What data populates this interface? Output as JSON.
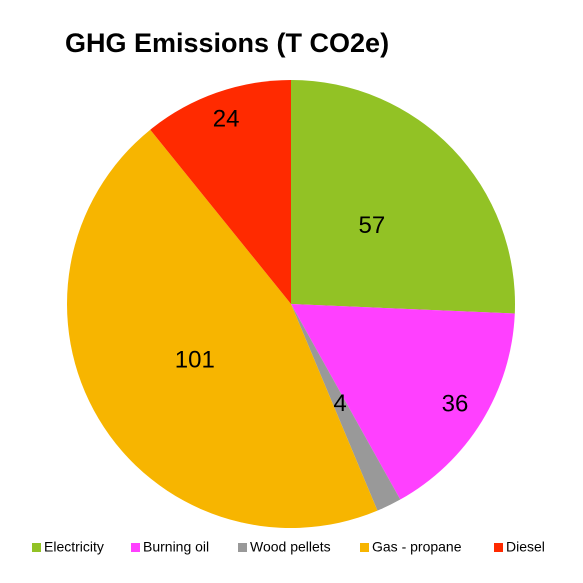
{
  "chart_data": {
    "type": "pie",
    "title": "GHG Emissions (T CO2e)",
    "categories": [
      "Electricity",
      "Burning oil",
      "Wood pellets",
      "Gas - propane",
      "Diesel"
    ],
    "values": [
      57,
      36,
      4,
      101,
      24
    ],
    "colors": [
      "#92c225",
      "#ff40ff",
      "#999999",
      "#f7b500",
      "#ff2a00"
    ],
    "legend": "bottom"
  }
}
